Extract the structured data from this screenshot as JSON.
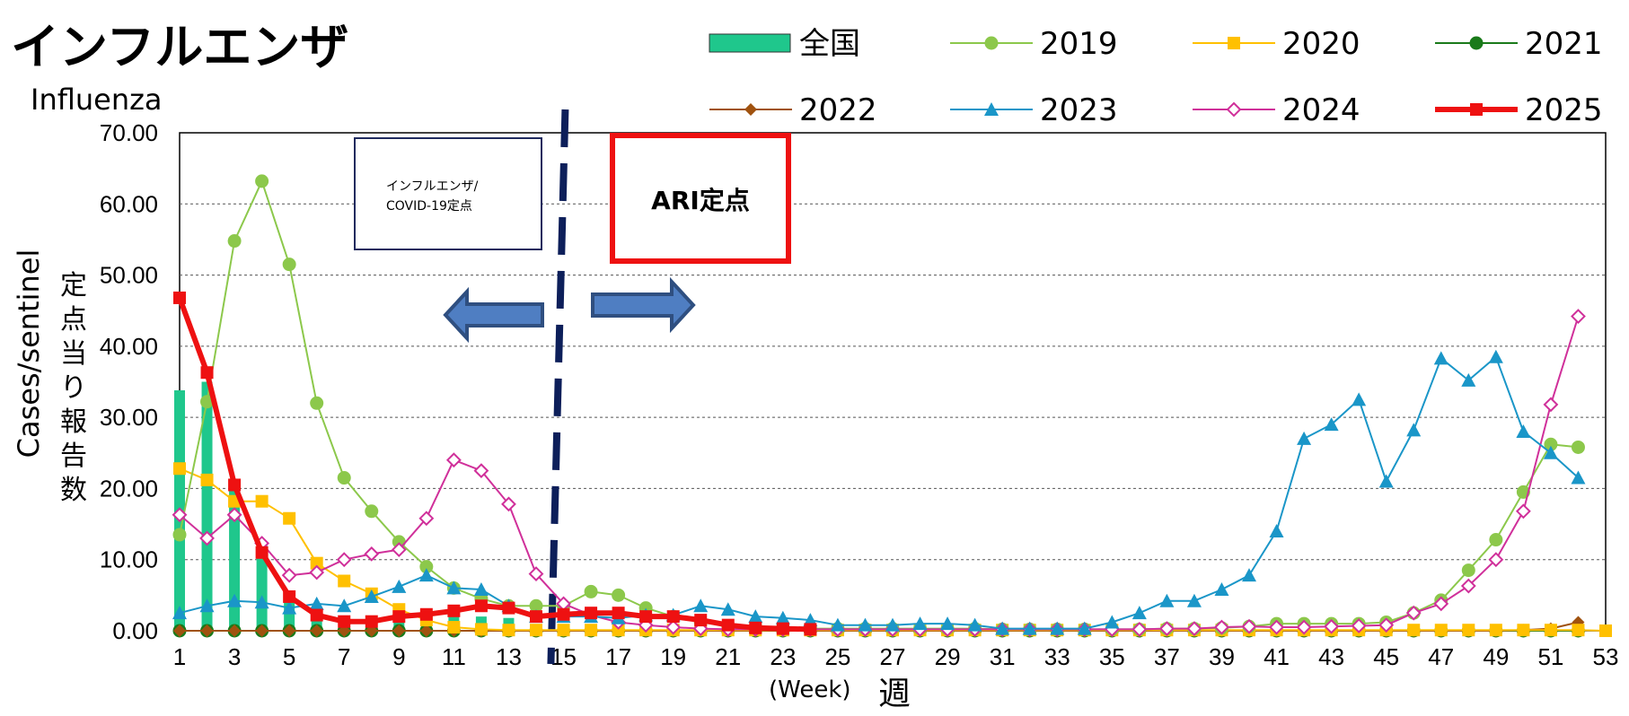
{
  "title": "インフルエンザ",
  "subtitle": "Influenza",
  "annotations": {
    "left_box": "インフルエンザ/\nCOVID-19定点",
    "right_box": "ARI定点"
  },
  "chart_data": {
    "type": "bar+line",
    "ylabel_en": "Cases/sentinel",
    "ylabel_jp": "定点当り報告数",
    "xlabel_en": "(Week)",
    "xlabel_jp": "週",
    "ylim": [
      0,
      70
    ],
    "y_ticks": [
      "0.00",
      "10.00",
      "20.00",
      "30.00",
      "40.00",
      "50.00",
      "60.00",
      "70.00"
    ],
    "xlim": [
      1,
      53
    ],
    "x_ticks": [
      1,
      3,
      5,
      7,
      9,
      11,
      13,
      15,
      17,
      19,
      21,
      23,
      25,
      27,
      29,
      31,
      33,
      35,
      37,
      39,
      41,
      43,
      45,
      47,
      49,
      51,
      53
    ],
    "grid": "horizontal dashed",
    "legend_position": "top-right",
    "divider_week": 14.8,
    "bars": {
      "name": "全国",
      "color": "#1fc78c",
      "x": [
        1,
        2,
        3,
        4,
        5,
        6,
        7,
        8,
        9,
        10,
        11,
        12,
        13,
        14
      ],
      "values": [
        33.8,
        35.0,
        19.8,
        12.0,
        4.5,
        2.0,
        1.5,
        1.3,
        1.5,
        2.5,
        2.0,
        2.0,
        1.8,
        0.5
      ]
    },
    "series": [
      {
        "name": "2019",
        "color": "#8cc84b",
        "marker": "circle",
        "width": 2,
        "x": [
          1,
          2,
          3,
          4,
          5,
          6,
          7,
          8,
          9,
          10,
          11,
          12,
          13,
          14,
          15,
          16,
          17,
          18,
          19,
          20,
          21,
          22,
          23,
          24,
          25,
          26,
          27,
          28,
          29,
          30,
          31,
          32,
          33,
          34,
          35,
          36,
          37,
          38,
          39,
          40,
          41,
          42,
          43,
          44,
          45,
          46,
          47,
          48,
          49,
          50,
          51,
          52
        ],
        "values": [
          13.5,
          32.2,
          54.8,
          63.2,
          51.5,
          32.0,
          21.5,
          16.8,
          12.5,
          9.0,
          6.0,
          4.5,
          3.5,
          3.5,
          3.5,
          5.5,
          5.0,
          3.2,
          2.0,
          1.2,
          0.7,
          0.5,
          0.4,
          0.3,
          0.3,
          0.3,
          0.3,
          0.3,
          0.3,
          0.3,
          0.2,
          0.2,
          0.2,
          0.2,
          0.2,
          0.2,
          0.3,
          0.3,
          0.4,
          0.6,
          1.0,
          1.0,
          1.0,
          1.0,
          1.2,
          2.5,
          4.3,
          8.5,
          12.8,
          19.5,
          26.2,
          25.8
        ]
      },
      {
        "name": "2020",
        "color": "#ffc000",
        "marker": "square",
        "width": 2,
        "x": [
          1,
          2,
          3,
          4,
          5,
          6,
          7,
          8,
          9,
          10,
          11,
          12,
          13,
          14,
          15,
          16,
          17,
          18,
          19,
          20,
          21,
          22,
          23,
          24,
          25,
          26,
          27,
          28,
          29,
          30,
          31,
          32,
          33,
          34,
          35,
          36,
          37,
          38,
          39,
          40,
          41,
          42,
          43,
          44,
          45,
          46,
          47,
          48,
          49,
          50,
          51,
          52,
          53
        ],
        "values": [
          22.8,
          21.2,
          18.2,
          18.2,
          15.8,
          9.5,
          7.0,
          5.2,
          3.0,
          1.5,
          0.5,
          0.2,
          0.1,
          0.1,
          0.1,
          0.1,
          0.1,
          0.1,
          0.1,
          0.1,
          0.1,
          0.1,
          0.1,
          0.1,
          0.1,
          0.1,
          0.1,
          0.1,
          0.1,
          0.1,
          0.1,
          0.1,
          0.1,
          0.1,
          0.1,
          0.1,
          0.1,
          0.1,
          0.1,
          0.1,
          0.1,
          0.1,
          0.1,
          0.1,
          0.1,
          0.1,
          0.1,
          0.1,
          0.1,
          0.1,
          0.1,
          0.1,
          0.0
        ]
      },
      {
        "name": "2021",
        "color": "#1a7a1a",
        "marker": "circle",
        "width": 2,
        "x": [
          1,
          2,
          3,
          4,
          5,
          6,
          7,
          8,
          9,
          10,
          11,
          12,
          13,
          14,
          15,
          16,
          17,
          18,
          19,
          20,
          21,
          22,
          23,
          24,
          25,
          26,
          27,
          28,
          29,
          30,
          31,
          32,
          33,
          34,
          35,
          36,
          37,
          38,
          39,
          40,
          41,
          42,
          43,
          44,
          45,
          46,
          47,
          48,
          49,
          50,
          51,
          52
        ],
        "values": [
          0,
          0,
          0,
          0,
          0,
          0,
          0,
          0,
          0,
          0,
          0,
          0,
          0,
          0,
          0,
          0,
          0,
          0,
          0,
          0,
          0,
          0,
          0,
          0,
          0,
          0,
          0,
          0,
          0,
          0,
          0,
          0,
          0,
          0,
          0,
          0,
          0,
          0,
          0,
          0,
          0,
          0,
          0,
          0,
          0,
          0,
          0,
          0,
          0,
          0,
          0,
          0
        ]
      },
      {
        "name": "2022",
        "color": "#a0520f",
        "marker": "diamond",
        "width": 2,
        "x": [
          1,
          2,
          3,
          4,
          5,
          6,
          7,
          8,
          9,
          10,
          11,
          12,
          13,
          14,
          15,
          16,
          17,
          18,
          19,
          20,
          21,
          22,
          23,
          24,
          25,
          26,
          27,
          28,
          29,
          30,
          31,
          32,
          33,
          34,
          35,
          36,
          37,
          38,
          39,
          40,
          41,
          42,
          43,
          44,
          45,
          46,
          47,
          48,
          49,
          50,
          51,
          52
        ],
        "values": [
          0,
          0,
          0,
          0,
          0,
          0,
          0,
          0,
          0,
          0,
          0,
          0,
          0,
          0,
          0,
          0,
          0,
          0,
          0,
          0,
          0,
          0,
          0,
          0,
          0,
          0,
          0,
          0,
          0,
          0,
          0,
          0,
          0,
          0,
          0,
          0,
          0,
          0,
          0,
          0,
          0,
          0,
          0,
          0,
          0,
          0,
          0,
          0,
          0,
          0.1,
          0.3,
          1.2
        ]
      },
      {
        "name": "2023",
        "color": "#1a96c8",
        "marker": "triangle",
        "width": 2,
        "x": [
          1,
          2,
          3,
          4,
          5,
          6,
          7,
          8,
          9,
          10,
          11,
          12,
          13,
          14,
          15,
          16,
          17,
          18,
          19,
          20,
          21,
          22,
          23,
          24,
          25,
          26,
          27,
          28,
          29,
          30,
          31,
          32,
          33,
          34,
          35,
          36,
          37,
          38,
          39,
          40,
          41,
          42,
          43,
          44,
          45,
          46,
          47,
          48,
          49,
          50,
          51,
          52
        ],
        "values": [
          2.5,
          3.5,
          4.2,
          4.0,
          3.2,
          3.8,
          3.5,
          4.8,
          6.2,
          7.8,
          6.0,
          5.8,
          3.5,
          2.0,
          2.0,
          2.0,
          1.8,
          2.2,
          2.2,
          3.5,
          3.0,
          2.0,
          1.8,
          1.5,
          0.8,
          0.8,
          0.8,
          1.0,
          1.0,
          0.8,
          0.3,
          0.3,
          0.3,
          0.3,
          1.2,
          2.5,
          4.2,
          4.2,
          5.8,
          7.8,
          14.0,
          27.0,
          29.0,
          32.5,
          21.0,
          28.2,
          38.3,
          35.2,
          38.5,
          28.0,
          25.0,
          21.5
        ]
      },
      {
        "name": "2024",
        "color": "#d0309a",
        "marker": "diamond-open",
        "width": 2,
        "x": [
          1,
          2,
          3,
          4,
          5,
          6,
          7,
          8,
          9,
          10,
          11,
          12,
          13,
          14,
          15,
          16,
          17,
          18,
          19,
          20,
          21,
          22,
          23,
          24,
          25,
          26,
          27,
          28,
          29,
          30,
          31,
          32,
          33,
          34,
          35,
          36,
          37,
          38,
          39,
          40,
          41,
          42,
          43,
          44,
          45,
          46,
          47,
          48,
          49,
          50,
          51,
          52
        ],
        "values": [
          16.3,
          13.0,
          16.3,
          12.3,
          7.8,
          8.2,
          10.0,
          10.8,
          11.4,
          15.8,
          24.0,
          22.5,
          17.8,
          8.0,
          3.8,
          2.2,
          1.2,
          0.8,
          0.5,
          0.3,
          0.2,
          0.2,
          0.2,
          0.2,
          0.2,
          0.2,
          0.2,
          0.2,
          0.2,
          0.2,
          0.2,
          0.2,
          0.2,
          0.2,
          0.2,
          0.2,
          0.3,
          0.3,
          0.5,
          0.6,
          0.5,
          0.5,
          0.6,
          0.7,
          0.8,
          2.5,
          3.8,
          6.3,
          10.0,
          16.8,
          31.8,
          44.2
        ]
      },
      {
        "name": "2025",
        "color": "#ee1111",
        "marker": "square",
        "width": 6,
        "x": [
          1,
          2,
          3,
          4,
          5,
          6,
          7,
          8,
          9,
          10,
          11,
          12,
          13,
          14,
          15,
          16,
          17,
          18,
          19,
          20,
          21,
          22,
          23,
          24
        ],
        "values": [
          46.8,
          36.3,
          20.5,
          11.0,
          4.8,
          2.2,
          1.3,
          1.3,
          2.0,
          2.3,
          2.8,
          3.5,
          3.2,
          2.0,
          2.3,
          2.5,
          2.5,
          2.0,
          2.0,
          1.5,
          0.8,
          0.4,
          0.3,
          0.2
        ]
      }
    ]
  }
}
